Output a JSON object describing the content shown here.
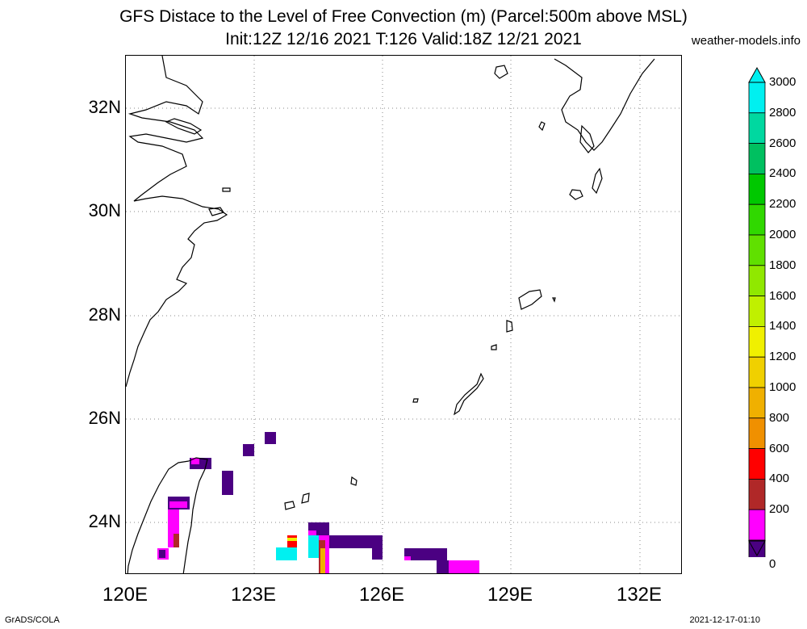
{
  "title_line1": "GFS Distace to the Level of Free Convection (m) (Parcel:500m above MSL)",
  "title_line2": "Init:12Z 12/16 2021 T:126 Valid:18Z 12/21 2021",
  "site": "weather-models.info",
  "footer_left": "GrADS/COLA",
  "footer_right": "2021-12-17-01:10",
  "lat_labels": [
    "32N",
    "30N",
    "28N",
    "26N",
    "24N"
  ],
  "lon_labels": [
    "120E",
    "123E",
    "126E",
    "129E",
    "132E"
  ],
  "colorbar": {
    "labels": [
      "3000",
      "2800",
      "2600",
      "2400",
      "2200",
      "2000",
      "1800",
      "1600",
      "1400",
      "1200",
      "1000",
      "800",
      "600",
      "400",
      "200",
      "0"
    ],
    "colors": [
      "#00f0f0",
      "#00d8a0",
      "#00c060",
      "#00c800",
      "#30d800",
      "#60e000",
      "#90e800",
      "#c0f000",
      "#f0f000",
      "#f0d000",
      "#f0b000",
      "#f09000",
      "#ff0000",
      "#b02828",
      "#ff00ff",
      "#4b0082"
    ]
  }
}
